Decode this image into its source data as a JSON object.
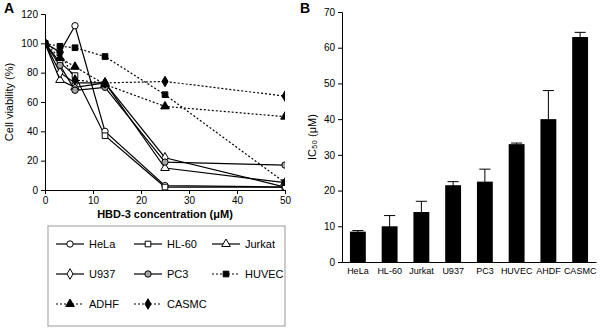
{
  "chart_data": [
    {
      "type": "line",
      "label": "A",
      "x_label": "HBD-3 concentration (μM)",
      "y_label": "Cell viability (%)",
      "x": [
        0,
        3.125,
        6.25,
        12.5,
        25,
        50
      ],
      "xlim": [
        0,
        50
      ],
      "xticks": [
        0,
        10,
        20,
        30,
        40,
        50
      ],
      "ylim": [
        0,
        120
      ],
      "yticks": [
        0,
        20,
        40,
        60,
        80,
        100,
        120
      ],
      "grid": false,
      "legend": "bottom",
      "series": [
        {
          "name": "HeLa",
          "color": "#000000",
          "marker": "open-circle",
          "line_style": "solid",
          "values": [
            100,
            94,
            112,
            40,
            3,
            2
          ]
        },
        {
          "name": "HL-60",
          "color": "#000000",
          "marker": "open-square",
          "line_style": "solid",
          "values": [
            100,
            87,
            78,
            37,
            2,
            2
          ]
        },
        {
          "name": "Jurkat",
          "color": "#000000",
          "marker": "open-triangle",
          "line_style": "solid",
          "values": [
            100,
            75,
            70,
            73,
            15,
            5
          ]
        },
        {
          "name": "U937",
          "color": "#000000",
          "marker": "open-diamond",
          "line_style": "solid",
          "values": [
            100,
            80,
            73,
            73,
            22,
            2
          ]
        },
        {
          "name": "PC3",
          "color": "#000000",
          "marker": "gray-circle",
          "line_style": "solid",
          "values": [
            100,
            85,
            68,
            70,
            19,
            17
          ]
        },
        {
          "name": "HUVEC",
          "color": "#000000",
          "marker": "filled-square",
          "line_style": "dotted",
          "values": [
            100,
            98,
            97,
            91,
            65,
            5
          ]
        },
        {
          "name": "ADHF",
          "color": "#000000",
          "marker": "filled-triangle",
          "line_style": "dotted",
          "values": [
            100,
            90,
            84,
            72,
            57,
            50
          ]
        },
        {
          "name": "CASMC",
          "color": "#000000",
          "marker": "filled-diamond",
          "line_style": "dotted",
          "values": [
            100,
            94,
            75,
            73,
            74,
            64
          ]
        }
      ]
    },
    {
      "type": "bar",
      "label": "B",
      "y_label": "IC₅₀ (μM)",
      "categories": [
        "HeLa",
        "HL-60",
        "Jurkat",
        "U937",
        "PC3",
        "HUVEC",
        "AHDF",
        "CASMC"
      ],
      "values": [
        8.5,
        10,
        14,
        21.5,
        22.5,
        33,
        40,
        63
      ],
      "errors": [
        0.3,
        3,
        3,
        1,
        3.5,
        0.3,
        8,
        1.3
      ],
      "color": "#000000",
      "ylim": [
        0,
        70
      ],
      "yticks": [
        0,
        10,
        20,
        30,
        40,
        50,
        60,
        70
      ],
      "grid": false
    }
  ]
}
